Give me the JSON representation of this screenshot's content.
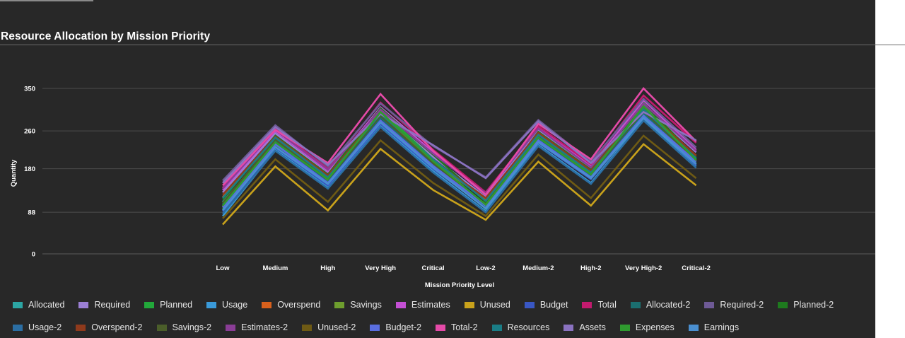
{
  "chart_data": {
    "type": "line",
    "title": "Resource Allocation by Mission Priority",
    "xlabel": "Mission Priority Level",
    "ylabel": "Quantity",
    "ylim": [
      0,
      360
    ],
    "yticks": [
      0,
      88,
      180,
      260,
      350
    ],
    "grid": true,
    "legend_position": "bottom",
    "categories": [
      "Low",
      "Medium",
      "High",
      "Very High",
      "Critical",
      "Low-2",
      "Medium-2",
      "High-2",
      "Very High-2",
      "Critical-2"
    ],
    "series": [
      {
        "name": "Allocated",
        "color": "#2ca6a4",
        "values": [
          110,
          235,
          150,
          280,
          185,
          105,
          245,
          165,
          295,
          190
        ]
      },
      {
        "name": "Required",
        "color": "#9b7fd4",
        "values": [
          130,
          255,
          170,
          300,
          205,
          120,
          262,
          180,
          315,
          215
        ]
      },
      {
        "name": "Planned",
        "color": "#22a83a",
        "values": [
          95,
          230,
          160,
          305,
          200,
          95,
          240,
          170,
          320,
          200
        ]
      },
      {
        "name": "Usage",
        "color": "#3a9ad9",
        "values": [
          80,
          220,
          140,
          270,
          175,
          90,
          230,
          150,
          285,
          185
        ]
      },
      {
        "name": "Overspend",
        "color": "#d8601c",
        "values": [
          120,
          245,
          165,
          295,
          195,
          115,
          255,
          175,
          305,
          205
        ]
      },
      {
        "name": "Savings",
        "color": "#6e9e2e",
        "values": [
          100,
          240,
          155,
          290,
          190,
          100,
          248,
          168,
          300,
          195
        ]
      },
      {
        "name": "Estimates",
        "color": "#c44fd4",
        "values": [
          135,
          260,
          175,
          310,
          215,
          125,
          268,
          185,
          325,
          220
        ]
      },
      {
        "name": "Unused",
        "color": "#c9a21b",
        "values": [
          62,
          185,
          92,
          222,
          135,
          72,
          195,
          102,
          232,
          145
        ]
      },
      {
        "name": "Budget",
        "color": "#3957c4",
        "values": [
          90,
          225,
          145,
          275,
          180,
          98,
          235,
          158,
          290,
          188
        ]
      },
      {
        "name": "Total",
        "color": "#c21a6e",
        "values": [
          140,
          265,
          180,
          320,
          220,
          130,
          270,
          190,
          335,
          235
        ]
      },
      {
        "name": "Allocated-2",
        "color": "#1b6f70",
        "values": [
          105,
          238,
          152,
          288,
          188,
          100,
          242,
          166,
          298,
          192
        ]
      },
      {
        "name": "Required-2",
        "color": "#6e5a96",
        "values": [
          155,
          272,
          185,
          318,
          228,
          162,
          283,
          195,
          328,
          225
        ]
      },
      {
        "name": "Planned-2",
        "color": "#1e7a1e",
        "values": [
          115,
          250,
          168,
          308,
          210,
          110,
          258,
          178,
          318,
          205
        ]
      },
      {
        "name": "Usage-2",
        "color": "#2b6ea3",
        "values": [
          85,
          218,
          138,
          268,
          172,
          88,
          228,
          148,
          282,
          182
        ]
      },
      {
        "name": "Overspend-2",
        "color": "#8f3a1c",
        "values": [
          125,
          248,
          166,
          298,
          198,
          118,
          256,
          176,
          308,
          208
        ]
      },
      {
        "name": "Savings-2",
        "color": "#4b5e2a",
        "values": [
          108,
          242,
          158,
          292,
          192,
          105,
          250,
          170,
          302,
          198
        ]
      },
      {
        "name": "Estimates-2",
        "color": "#8a3d96",
        "values": [
          138,
          262,
          178,
          305,
          212,
          128,
          265,
          183,
          318,
          218
        ]
      },
      {
        "name": "Unused-2",
        "color": "#6e5a14",
        "values": [
          75,
          200,
          110,
          240,
          150,
          80,
          210,
          118,
          250,
          160
        ]
      },
      {
        "name": "Budget-2",
        "color": "#5a6ee0",
        "values": [
          98,
          232,
          150,
          282,
          186,
          102,
          240,
          162,
          292,
          195
        ]
      },
      {
        "name": "Total-2",
        "color": "#e54aa8",
        "values": [
          145,
          262,
          192,
          338,
          218,
          125,
          275,
          200,
          350,
          238
        ]
      },
      {
        "name": "Resources",
        "color": "#1a7d86",
        "values": [
          118,
          246,
          162,
          296,
          200,
          112,
          252,
          172,
          306,
          202
        ]
      },
      {
        "name": "Assets",
        "color": "#8a72c0",
        "values": [
          150,
          268,
          188,
          296,
          230,
          160,
          280,
          192,
          300,
          240
        ]
      },
      {
        "name": "Expenses",
        "color": "#2f9a2f",
        "values": [
          102,
          236,
          158,
          300,
          196,
          104,
          246,
          168,
          312,
          198
        ]
      },
      {
        "name": "Earnings",
        "color": "#4a8fd0",
        "values": [
          92,
          226,
          148,
          278,
          182,
          96,
          236,
          160,
          288,
          190
        ]
      }
    ]
  }
}
